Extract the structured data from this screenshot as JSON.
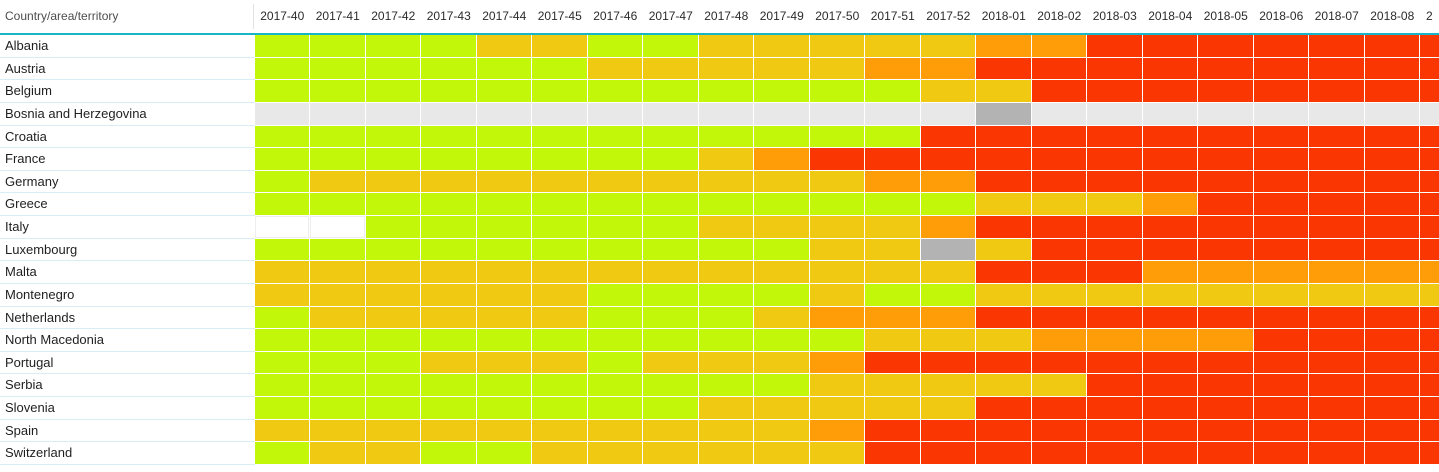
{
  "table": {
    "corner_label": "Country/area/territory"
  },
  "colors": {
    "green": "#c2f70a",
    "yellow": "#f0c913",
    "orange": "#ff9d09",
    "red": "#fa3603",
    "gray_light": "#e8e8e8",
    "gray_dark": "#b3b3b3",
    "white": "#ffffff",
    "divider_teal": "#16b6c8",
    "row_separator": "#d9edf5"
  },
  "chart_data": {
    "type": "heatmap",
    "x": [
      "2017-40",
      "2017-41",
      "2017-42",
      "2017-43",
      "2017-44",
      "2017-45",
      "2017-46",
      "2017-47",
      "2017-48",
      "2017-49",
      "2017-50",
      "2017-51",
      "2017-52",
      "2018-01",
      "2018-02",
      "2018-03",
      "2018-04",
      "2018-05",
      "2018-06",
      "2018-07",
      "2018-08",
      "2"
    ],
    "y": [
      "Albania",
      "Austria",
      "Belgium",
      "Bosnia and Herzegovina",
      "Croatia",
      "France",
      "Germany",
      "Greece",
      "Italy",
      "Luxembourg",
      "Malta",
      "Montenegro",
      "Netherlands",
      "North Macedonia",
      "Portugal",
      "Serbia",
      "Slovenia",
      "Spain",
      "Switzerland"
    ],
    "level_colors": {
      "G": "green",
      "Y": "yellow",
      "O": "orange",
      "R": "red",
      "E": "gray_light",
      "D": "gray_dark",
      "W": "white"
    },
    "rows": [
      {
        "name": "Albania",
        "cells": "GGGGYYGGYYYYYOORRRRRRR"
      },
      {
        "name": "Austria",
        "cells": "GGGGGGYYYYYOORRRRRRRRR"
      },
      {
        "name": "Belgium",
        "cells": "GGGGGGGGGGGGYYRRRRRRRR"
      },
      {
        "name": "Bosnia and Herzegovina",
        "cells": "EEEEEEEEEEEEEDEEEEEEEE"
      },
      {
        "name": "Croatia",
        "cells": "GGGGGGGGGGGGRRRRRRRRRR"
      },
      {
        "name": "France",
        "cells": "GGGGGGGGYORRRRRRRRRRRR"
      },
      {
        "name": "Germany",
        "cells": "GYYYYYYYYYYOORRRRRRRRR"
      },
      {
        "name": "Greece",
        "cells": "GGGGGGGGGGGGGYYYORRRRR"
      },
      {
        "name": "Italy",
        "cells": "WWGGGGGGYYYYORRRRRRRRR"
      },
      {
        "name": "Luxembourg",
        "cells": "GGGGGGGGGGYYDYRRRRRRRR"
      },
      {
        "name": "Malta",
        "cells": "YYYYYYYYYYYYYRRROOOOOO"
      },
      {
        "name": "Montenegro",
        "cells": "YYYYYYGGGGYGGYYYYYYYYY"
      },
      {
        "name": "Netherlands",
        "cells": "GYYYYYGGGYOOORRRRRRRRR"
      },
      {
        "name": "North Macedonia",
        "cells": "GGGGGGGGGGGYYYOOOORRRR"
      },
      {
        "name": "Portugal",
        "cells": "GGGYYYGYYYORRRRRRRRRRR"
      },
      {
        "name": "Serbia",
        "cells": "GGGGGGGGGGYYYYYRRRRRRR"
      },
      {
        "name": "Slovenia",
        "cells": "GGGGGGGGYYYYYRRRRRRRRR"
      },
      {
        "name": "Spain",
        "cells": "YYYYYYYYYYORRRRRRRRRRR"
      },
      {
        "name": "Switzerland",
        "cells": "GYYGGYYYYYYRRRRRRRRRRR"
      }
    ]
  }
}
